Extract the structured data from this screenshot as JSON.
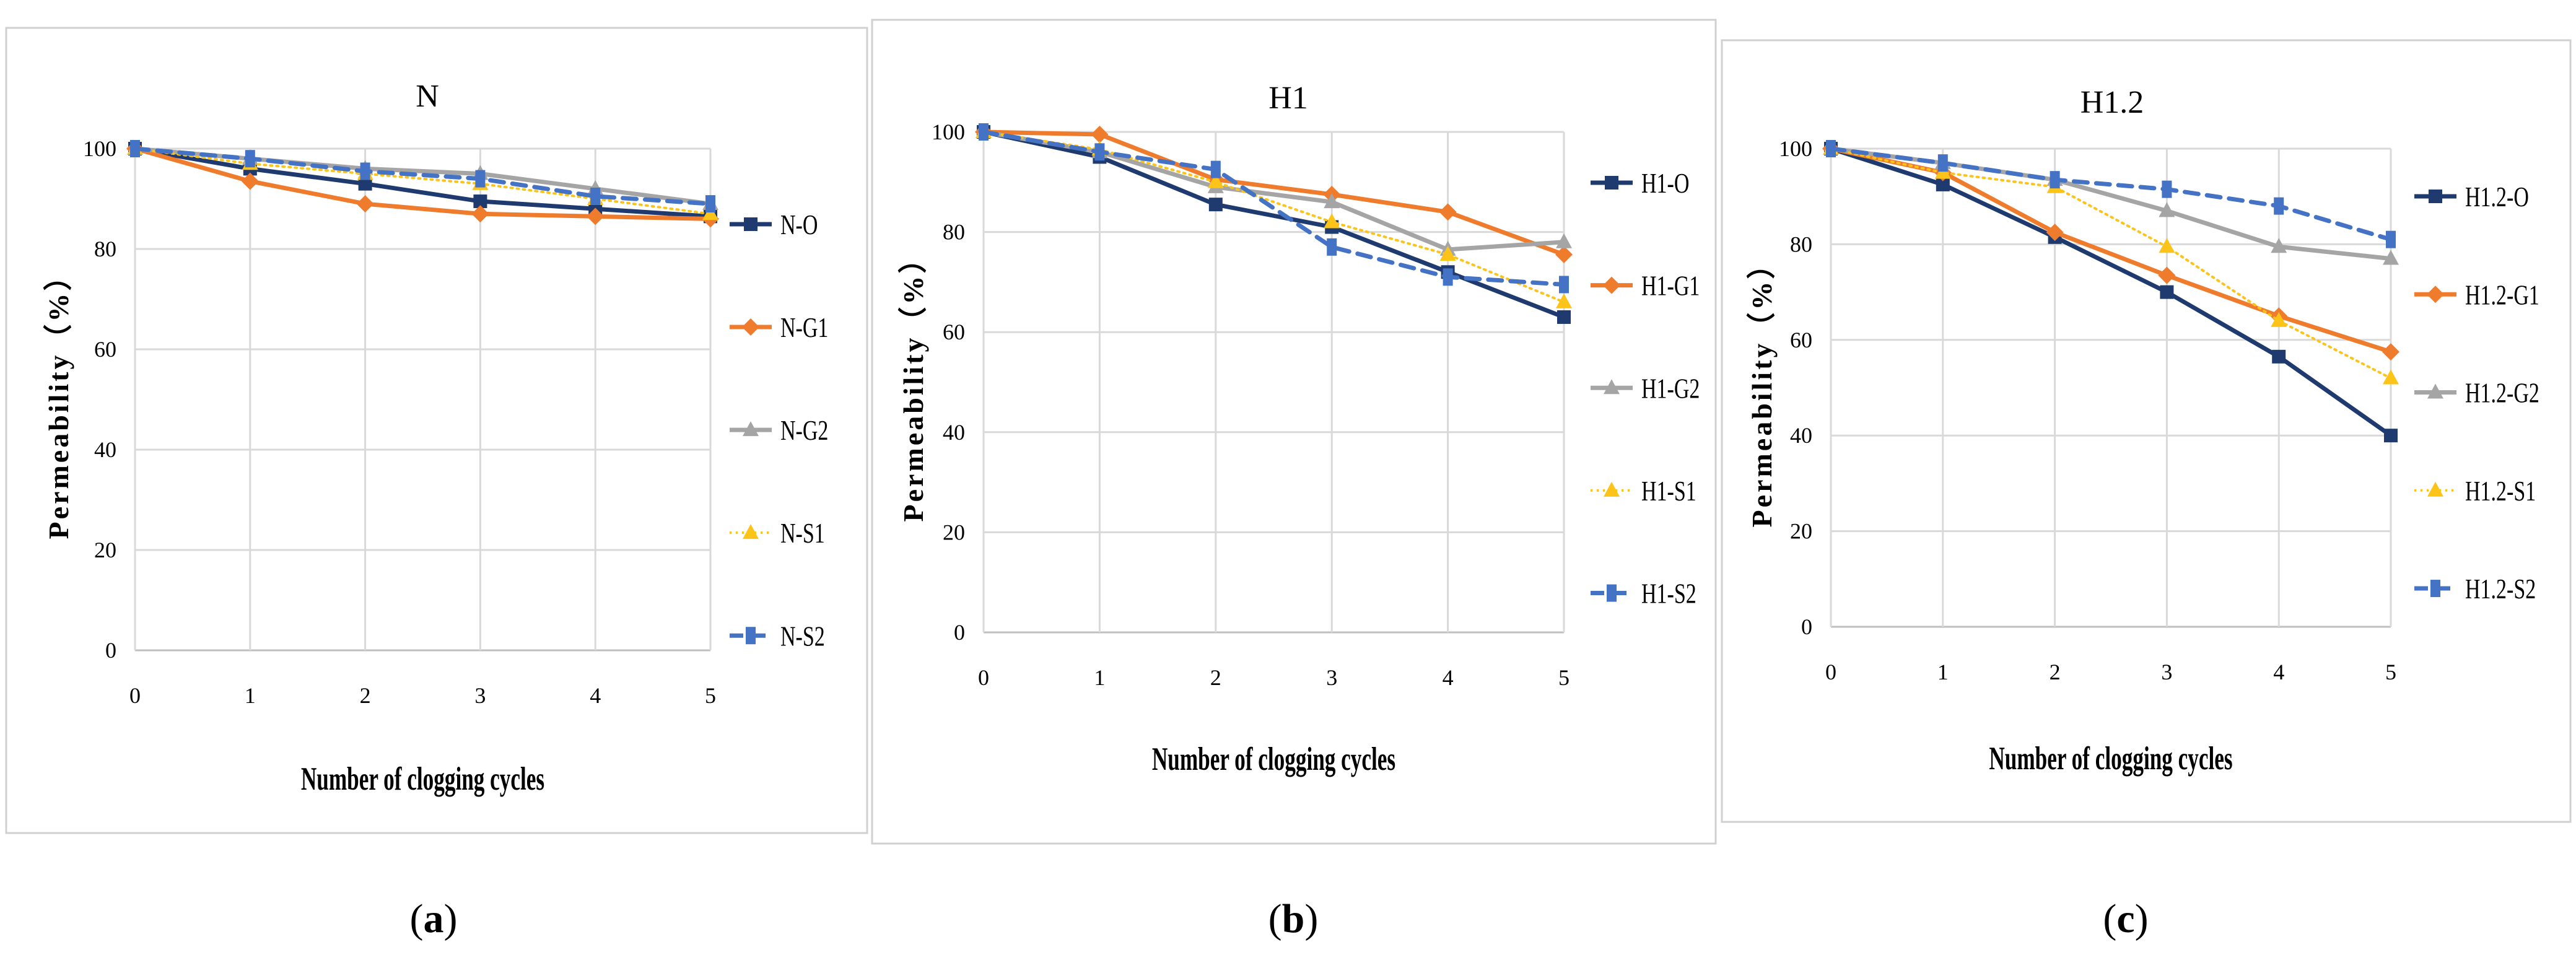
{
  "colors": {
    "O": "#1f3a6e",
    "G1": "#ef7b2c",
    "G2": "#a5a5a5",
    "S1": "#fcc419",
    "S2": "#4472c4",
    "grid": "#d9d9d9",
    "frame": "#d0d0d0",
    "axis": "#bfbfbf"
  },
  "chart_data": [
    {
      "type": "line",
      "panel_label": "(a)",
      "panel_letter": "a",
      "title": "N",
      "xlabel": "Number of clogging cycles",
      "ylabel": "Permeability（%）",
      "x": [
        0,
        1,
        2,
        3,
        4,
        5
      ],
      "xlim": [
        0,
        5
      ],
      "ylim": [
        0,
        100
      ],
      "yticks": [
        0,
        20,
        40,
        60,
        80,
        100
      ],
      "grid": true,
      "legend": "right",
      "series": [
        {
          "name": "N-O",
          "key": "O",
          "values": [
            100,
            96,
            93,
            89.5,
            88,
            86.5
          ]
        },
        {
          "name": "N-G1",
          "key": "G1",
          "values": [
            100,
            93.5,
            89,
            87,
            86.5,
            86
          ]
        },
        {
          "name": "N-G2",
          "key": "G2",
          "values": [
            100,
            98,
            96,
            95,
            92,
            89
          ]
        },
        {
          "name": "N-S1",
          "key": "S1",
          "values": [
            100,
            97,
            95,
            93,
            90,
            87
          ]
        },
        {
          "name": "N-S2",
          "key": "S2",
          "values": [
            100,
            98,
            95.5,
            94,
            90.5,
            89
          ]
        }
      ]
    },
    {
      "type": "line",
      "panel_label": "(b)",
      "panel_letter": "b",
      "title": "H1",
      "xlabel": "Number of clogging cycles",
      "ylabel": "Permeability（%）",
      "x": [
        0,
        1,
        2,
        3,
        4,
        5
      ],
      "xlim": [
        0,
        5
      ],
      "ylim": [
        0,
        100
      ],
      "yticks": [
        0,
        20,
        40,
        60,
        80,
        100
      ],
      "grid": true,
      "legend": "right",
      "series": [
        {
          "name": "H1-O",
          "key": "O",
          "values": [
            100,
            95,
            85.5,
            81,
            72,
            63
          ]
        },
        {
          "name": "H1-G1",
          "key": "G1",
          "values": [
            100,
            99.5,
            90.5,
            87.5,
            84,
            75.5
          ]
        },
        {
          "name": "H1-G2",
          "key": "G2",
          "values": [
            100,
            96,
            89,
            86,
            76.5,
            78
          ]
        },
        {
          "name": "H1-S1",
          "key": "S1",
          "values": [
            100,
            96.5,
            90,
            82,
            75.5,
            66
          ]
        },
        {
          "name": "H1-S2",
          "key": "S2",
          "values": [
            100,
            96,
            92.5,
            77,
            71,
            69.5
          ]
        }
      ]
    },
    {
      "type": "line",
      "panel_label": "(c)",
      "panel_letter": "c",
      "title": "H1.2",
      "xlabel": "Number of clogging cycles",
      "ylabel": "Permeability（%）",
      "x": [
        0,
        1,
        2,
        3,
        4,
        5
      ],
      "xlim": [
        0,
        5
      ],
      "ylim": [
        0,
        100
      ],
      "yticks": [
        0,
        20,
        40,
        60,
        80,
        100
      ],
      "grid": true,
      "legend": "right",
      "series": [
        {
          "name": "H1.2-O",
          "key": "O",
          "values": [
            100,
            92.5,
            81.5,
            70,
            56.5,
            40
          ]
        },
        {
          "name": "H1.2-G1",
          "key": "G1",
          "values": [
            100,
            95,
            82.5,
            73.5,
            65,
            57.5
          ]
        },
        {
          "name": "H1.2-G2",
          "key": "G2",
          "values": [
            100,
            97,
            93.5,
            87,
            79.5,
            77
          ]
        },
        {
          "name": "H1.2-S1",
          "key": "S1",
          "values": [
            100,
            95,
            92,
            79.5,
            64,
            52
          ]
        },
        {
          "name": "H1.2-S2",
          "key": "S2",
          "values": [
            100,
            97,
            93.5,
            91.5,
            88,
            81
          ]
        }
      ]
    }
  ]
}
